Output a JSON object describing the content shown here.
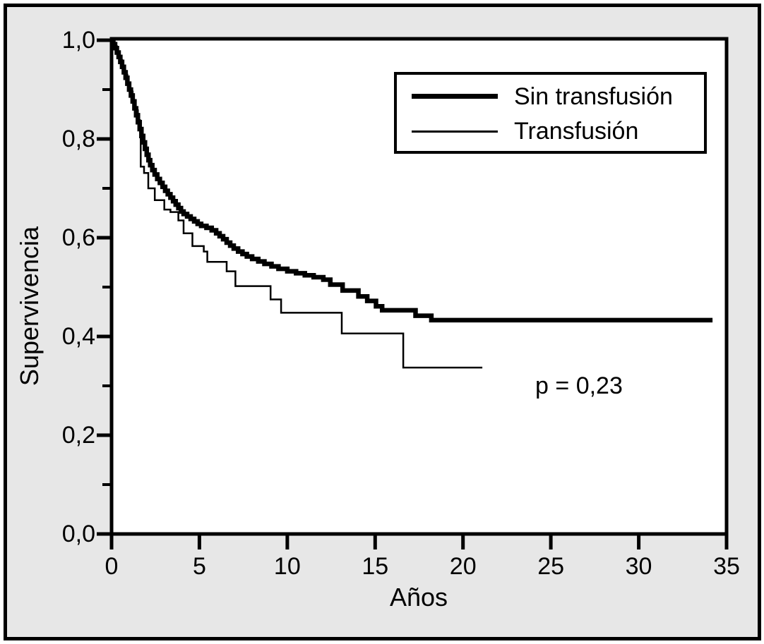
{
  "figure": {
    "background_color": "#e7e7e7",
    "plot_background_color": "#ffffff",
    "line_color": "#000000"
  },
  "chart_data": {
    "type": "line",
    "subtype": "kaplan-meier-step",
    "title": "",
    "xlabel": "Años",
    "ylabel": "Supervivencia",
    "xlim": [
      0,
      35
    ],
    "ylim": [
      0.0,
      1.0
    ],
    "grid": false,
    "legend_position": "top-right",
    "xticks": [
      {
        "value": 0,
        "label": "0"
      },
      {
        "value": 5,
        "label": "5"
      },
      {
        "value": 10,
        "label": "10"
      },
      {
        "value": 15,
        "label": "15"
      },
      {
        "value": 20,
        "label": "20"
      },
      {
        "value": 25,
        "label": "25"
      },
      {
        "value": 30,
        "label": "30"
      },
      {
        "value": 35,
        "label": "35"
      }
    ],
    "yticks": [
      {
        "value": 1.0,
        "label": "1,0"
      },
      {
        "value": 0.8,
        "label": "0,8"
      },
      {
        "value": 0.6,
        "label": "0,6"
      },
      {
        "value": 0.4,
        "label": "0,4"
      },
      {
        "value": 0.2,
        "label": "0,2"
      },
      {
        "value": 0.0,
        "label": "0,0"
      }
    ],
    "yticks_minor": [
      0.9,
      0.7,
      0.5,
      0.3,
      0.1
    ],
    "annotation": {
      "text": "p = 0,23",
      "x": 26.6,
      "y": 0.3
    },
    "series": [
      {
        "name": "Sin transfusión",
        "stroke_width": 6.5,
        "end_year": 34.2,
        "steps": [
          [
            0.0,
            1.0
          ],
          [
            0.1,
            0.992
          ],
          [
            0.2,
            0.984
          ],
          [
            0.3,
            0.975
          ],
          [
            0.4,
            0.966
          ],
          [
            0.5,
            0.956
          ],
          [
            0.6,
            0.946
          ],
          [
            0.7,
            0.935
          ],
          [
            0.8,
            0.924
          ],
          [
            0.9,
            0.912
          ],
          [
            1.0,
            0.9
          ],
          [
            1.1,
            0.888
          ],
          [
            1.2,
            0.876
          ],
          [
            1.3,
            0.862
          ],
          [
            1.4,
            0.848
          ],
          [
            1.5,
            0.834
          ],
          [
            1.6,
            0.82
          ],
          [
            1.7,
            0.806
          ],
          [
            1.8,
            0.793
          ],
          [
            1.9,
            0.78
          ],
          [
            2.0,
            0.768
          ],
          [
            2.1,
            0.757
          ],
          [
            2.2,
            0.747
          ],
          [
            2.32,
            0.737
          ],
          [
            2.45,
            0.728
          ],
          [
            2.6,
            0.719
          ],
          [
            2.75,
            0.711
          ],
          [
            2.9,
            0.703
          ],
          [
            3.05,
            0.695
          ],
          [
            3.2,
            0.688
          ],
          [
            3.35,
            0.681
          ],
          [
            3.5,
            0.674
          ],
          [
            3.65,
            0.667
          ],
          [
            3.8,
            0.66
          ],
          [
            3.95,
            0.653
          ],
          [
            4.1,
            0.648
          ],
          [
            4.3,
            0.643
          ],
          [
            4.5,
            0.638
          ],
          [
            4.7,
            0.633
          ],
          [
            4.9,
            0.628
          ],
          [
            5.1,
            0.624
          ],
          [
            5.4,
            0.62
          ],
          [
            5.7,
            0.615
          ],
          [
            5.95,
            0.609
          ],
          [
            6.15,
            0.603
          ],
          [
            6.35,
            0.597
          ],
          [
            6.55,
            0.59
          ],
          [
            6.75,
            0.584
          ],
          [
            6.95,
            0.578
          ],
          [
            7.2,
            0.572
          ],
          [
            7.45,
            0.567
          ],
          [
            7.7,
            0.562
          ],
          [
            8.0,
            0.557
          ],
          [
            8.35,
            0.552
          ],
          [
            8.7,
            0.547
          ],
          [
            9.1,
            0.542
          ],
          [
            9.5,
            0.537
          ],
          [
            10.0,
            0.532
          ],
          [
            10.5,
            0.528
          ],
          [
            11.0,
            0.524
          ],
          [
            11.5,
            0.52
          ],
          [
            12.05,
            0.515
          ],
          [
            12.45,
            0.505
          ],
          [
            13.15,
            0.493
          ],
          [
            14.05,
            0.481
          ],
          [
            14.55,
            0.472
          ],
          [
            15.05,
            0.461
          ],
          [
            15.4,
            0.453
          ],
          [
            17.3,
            0.442
          ],
          [
            18.2,
            0.433
          ]
        ]
      },
      {
        "name": "Transfusión",
        "stroke_width": 2.5,
        "end_year": 21.1,
        "steps": [
          [
            0.0,
            1.0
          ],
          [
            0.15,
            0.988
          ],
          [
            0.3,
            0.974
          ],
          [
            0.45,
            0.96
          ],
          [
            0.6,
            0.946
          ],
          [
            0.75,
            0.93
          ],
          [
            0.9,
            0.913
          ],
          [
            1.05,
            0.896
          ],
          [
            1.2,
            0.878
          ],
          [
            1.35,
            0.858
          ],
          [
            1.5,
            0.838
          ],
          [
            1.62,
            0.815
          ],
          [
            1.66,
            0.744
          ],
          [
            1.85,
            0.731
          ],
          [
            2.09,
            0.7
          ],
          [
            2.46,
            0.676
          ],
          [
            3.0,
            0.657
          ],
          [
            3.35,
            0.652
          ],
          [
            3.8,
            0.635
          ],
          [
            4.1,
            0.609
          ],
          [
            4.6,
            0.583
          ],
          [
            5.25,
            0.572
          ],
          [
            5.45,
            0.551
          ],
          [
            6.55,
            0.532
          ],
          [
            7.05,
            0.502
          ],
          [
            9.05,
            0.475
          ],
          [
            9.65,
            0.448
          ],
          [
            13.1,
            0.406
          ],
          [
            16.6,
            0.337
          ]
        ]
      }
    ]
  }
}
